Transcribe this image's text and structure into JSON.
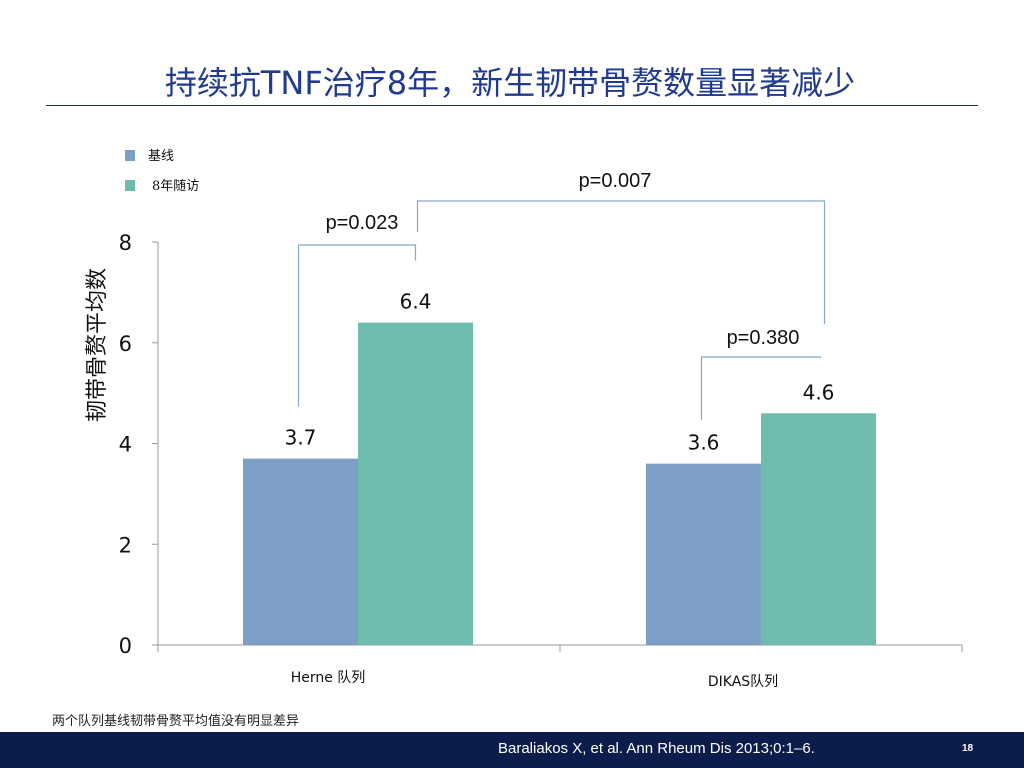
{
  "slide": {
    "title": "持续抗TNF治疗8年，新生韧带骨赘数量显著减少",
    "note": "两个队列基线韧带骨赘平均值没有明显差异",
    "citation": "Baraliakos X, et al. Ann Rheum Dis 2013;0:1–6.",
    "page_number": "18"
  },
  "chart_data": {
    "type": "bar",
    "title": "",
    "xlabel": "",
    "ylabel": "韧带骨赘平均数",
    "ylim": [
      0,
      8
    ],
    "yticks": [
      "0",
      "2",
      "4",
      "6",
      "8"
    ],
    "categories": [
      "Herne 队列",
      "DIKAS队列"
    ],
    "series": [
      {
        "name": "基线",
        "values": [
          3.7,
          3.6
        ],
        "labels": [
          "3.7",
          "3.6"
        ],
        "color": "#7d9fc6"
      },
      {
        "name": "8年随访",
        "values": [
          6.4,
          4.6
        ],
        "labels": [
          "6.4",
          "4.6"
        ],
        "color": "#6dbcad"
      }
    ],
    "legend_position": "top-left",
    "grid": false,
    "annotations": [
      {
        "text": "p=0.023",
        "compares": "Herne 队列: 基线 vs 8年随访"
      },
      {
        "text": "p=0.380",
        "compares": "DIKAS队列: 基线 vs 8年随访"
      },
      {
        "text": "p=0.007",
        "compares": "8年随访: Herne 队列 vs DIKAS队列"
      }
    ],
    "bracket_color": "#8aa8cf"
  }
}
